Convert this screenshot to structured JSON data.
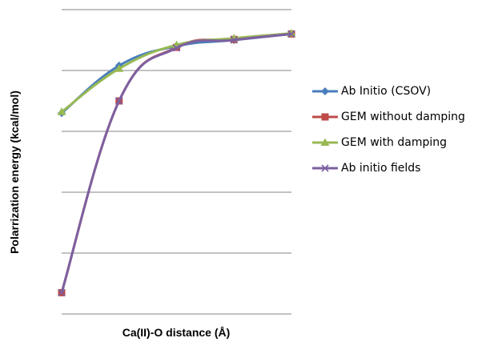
{
  "chart_data": {
    "type": "line",
    "title": "",
    "xlabel": "Ca(II)-O distance (Å)",
    "ylabel": "Polarrization energy (kcal/mol)",
    "x": [
      1,
      2,
      3,
      4,
      5
    ],
    "ylim": [
      0,
      5
    ],
    "grid": true,
    "legend_position": "right",
    "series": [
      {
        "name": "Ab Initio (CSOV)",
        "color": "#4a7ebb",
        "marker": "diamond",
        "values": [
          3.3,
          4.08,
          4.4,
          4.5,
          4.6
        ]
      },
      {
        "name": "GEM without damping",
        "color": "#be4b48",
        "marker": "square",
        "values": [
          0.35,
          3.5,
          4.38,
          4.51,
          4.6
        ]
      },
      {
        "name": "GEM with damping",
        "color": "#98b954",
        "marker": "triangle",
        "values": [
          3.32,
          4.03,
          4.42,
          4.53,
          4.61
        ]
      },
      {
        "name": "Ab initio fields",
        "color": "#7d60a0",
        "marker": "x",
        "values": [
          0.35,
          3.5,
          4.37,
          4.5,
          4.6
        ]
      }
    ]
  }
}
